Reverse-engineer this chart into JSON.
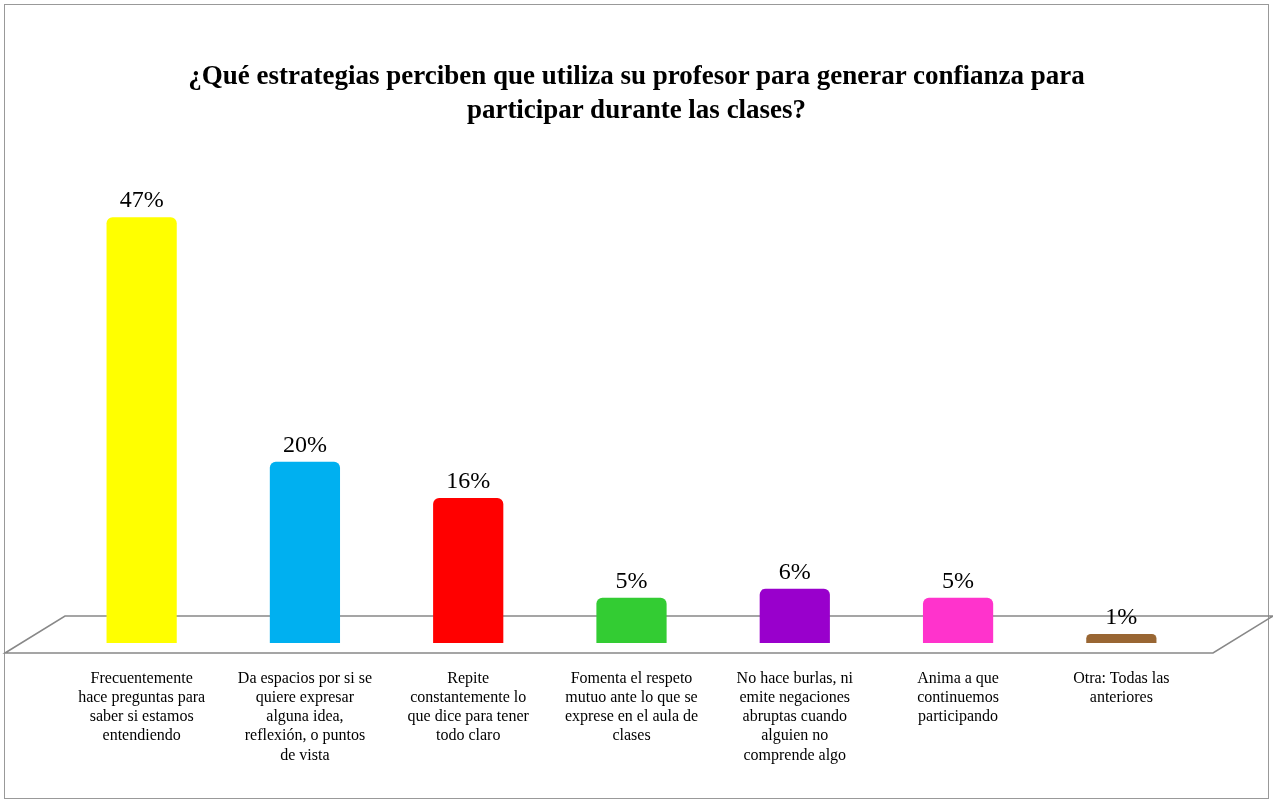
{
  "chart_data": {
    "type": "bar",
    "title": "¿Qué estrategias perciben que utiliza su profesor para generar confianza para participar durante las clases?",
    "categories": [
      "Frecuentemente hace preguntas para saber si estamos entendiendo",
      "Da espacios por si se quiere expresar alguna idea, reflexión, o puntos de vista",
      "Repite constantemente lo que dice para tener todo claro",
      "Fomenta el respeto mutuo ante lo que se exprese en el aula de clases",
      "No hace burlas, ni emite negaciones abruptas cuando alguien no comprende algo",
      "Anima a que continuemos participando",
      "Otra: Todas las anteriores"
    ],
    "values": [
      47,
      20,
      16,
      5,
      6,
      5,
      1
    ],
    "value_labels": [
      "47%",
      "20%",
      "16%",
      "5%",
      "6%",
      "5%",
      "1%"
    ],
    "colors": [
      "#ffff00",
      "#00b0f0",
      "#ff0000",
      "#33cc33",
      "#9900cc",
      "#ff33cc",
      "#996633"
    ],
    "grid": false,
    "legend": false
  }
}
